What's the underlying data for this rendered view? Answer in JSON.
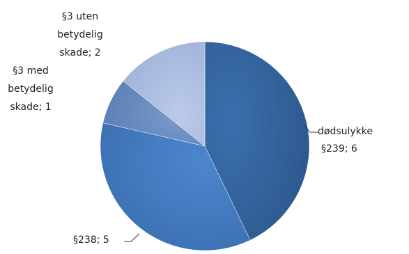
{
  "chart_data": {
    "type": "pie",
    "categories": [
      "dødsulykke §239",
      "§238",
      "§3 med betydelig skade",
      "§3 uten betydelig skade"
    ],
    "values": [
      6,
      5,
      1,
      2
    ],
    "labels": [
      "dødsulykke §239; 6",
      "§238; 5",
      "§3 med betydelig skade; 1",
      "§3 uten betydelig skade; 2"
    ],
    "colors": [
      "#3465a2",
      "#4a7fc4",
      "#6c8fc2",
      "#adbddd"
    ],
    "legend": "none"
  }
}
